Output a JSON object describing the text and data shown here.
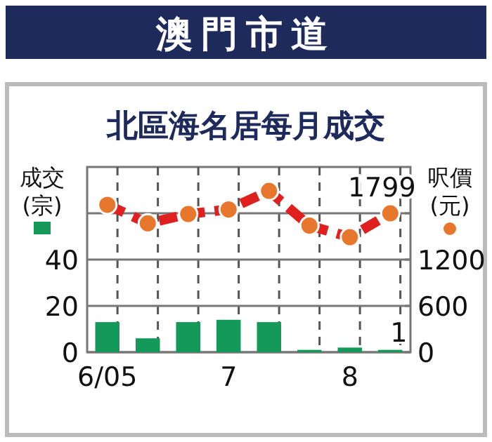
{
  "chart_data": {
    "type": "bar",
    "title": "澳門市道",
    "subtitle": "北區海名居每月成交",
    "ylabel": "成交(宗)",
    "y2label": "呎價(元)",
    "categories": [
      "6/05",
      null,
      null,
      "7",
      null,
      null,
      "8",
      null
    ],
    "series": [
      {
        "color": "#14995a",
        "values": [
          13,
          6,
          13,
          14,
          13,
          1,
          2,
          1
        ],
        "value_labels": [
          null,
          null,
          null,
          null,
          null,
          null,
          null,
          "1"
        ]
      },
      {
        "type": "line",
        "axis": "y2",
        "color": "#e0201e",
        "marker": "circle",
        "values": [
          1910,
          1670,
          1790,
          1850,
          2090,
          1640,
          1490,
          1799
        ],
        "value_labels": [
          null,
          null,
          null,
          null,
          null,
          null,
          null,
          "1799"
        ]
      }
    ],
    "ylim": [
      0,
      80
    ],
    "yticks": [
      0,
      20,
      40,
      {
        "value": 60,
        "label": null
      }
    ],
    "y2lim": [
      0,
      2400
    ],
    "y2ticks": [
      0,
      600,
      1200,
      {
        "value": 1800,
        "label": null
      }
    ],
    "grid": true,
    "line_style": "dashed"
  }
}
